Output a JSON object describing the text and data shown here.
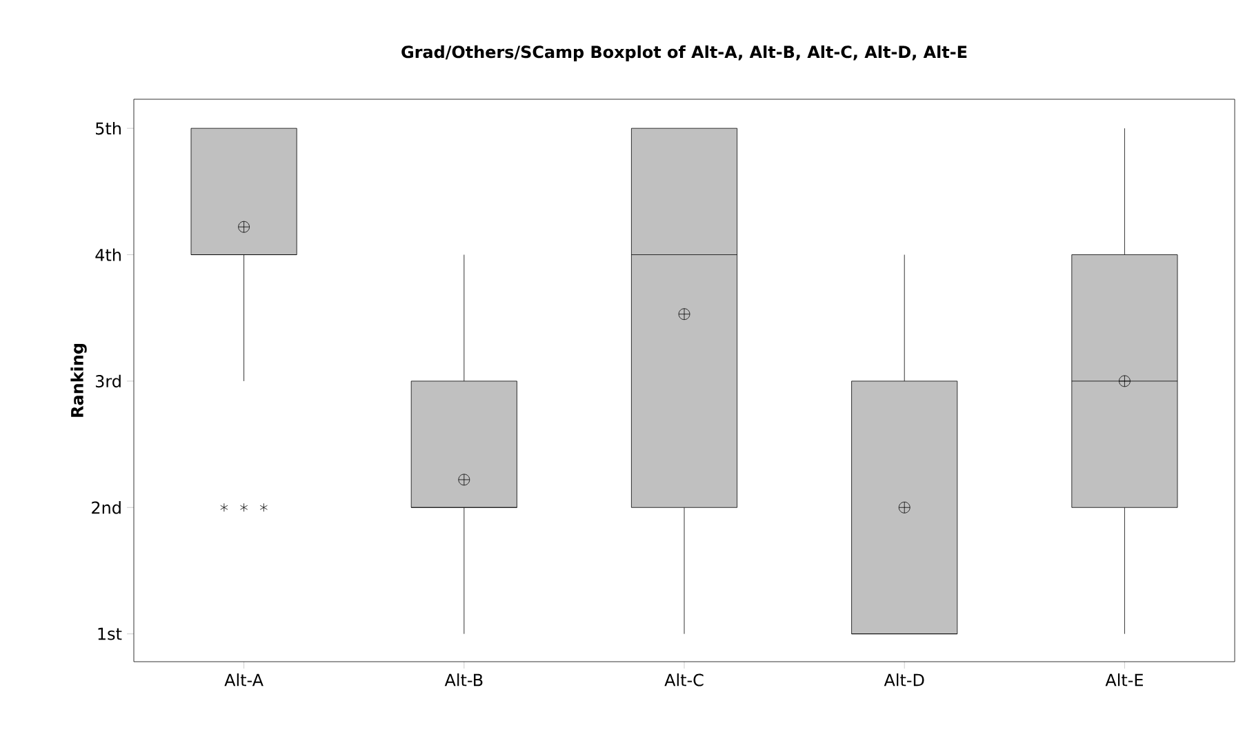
{
  "chart_data": {
    "type": "box",
    "title": "Grad/Others/SCamp Boxplot of Alt-A, Alt-B, Alt-C, Alt-D, Alt-E",
    "ylabel": "Ranking",
    "categories": [
      "Alt-A",
      "Alt-B",
      "Alt-C",
      "Alt-D",
      "Alt-E"
    ],
    "boxes": [
      {
        "low": 3,
        "q1": 4,
        "median": 4,
        "q3": 5,
        "high": 5,
        "mean": 4.22,
        "outliers": [
          2,
          2,
          2
        ]
      },
      {
        "low": 1,
        "q1": 2,
        "median": 2,
        "q3": 3,
        "high": 4,
        "mean": 2.22
      },
      {
        "low": 1,
        "q1": 2,
        "median": 4,
        "q3": 5,
        "high": 5,
        "mean": 3.53
      },
      {
        "low": 1,
        "q1": 1,
        "median": 1,
        "q3": 3,
        "high": 4,
        "mean": 2.0
      },
      {
        "low": 1,
        "q1": 2,
        "median": 3,
        "q3": 4,
        "high": 5,
        "mean": 3.0
      }
    ],
    "color": "#c0c0c0",
    "ylim": [
      0.78,
      5.23
    ],
    "yticks": [
      {
        "value": 1,
        "label": "1st"
      },
      {
        "value": 2,
        "label": "2nd"
      },
      {
        "value": 3,
        "label": "3rd"
      },
      {
        "value": 4,
        "label": "4th"
      },
      {
        "value": 5,
        "label": "5th"
      }
    ]
  }
}
